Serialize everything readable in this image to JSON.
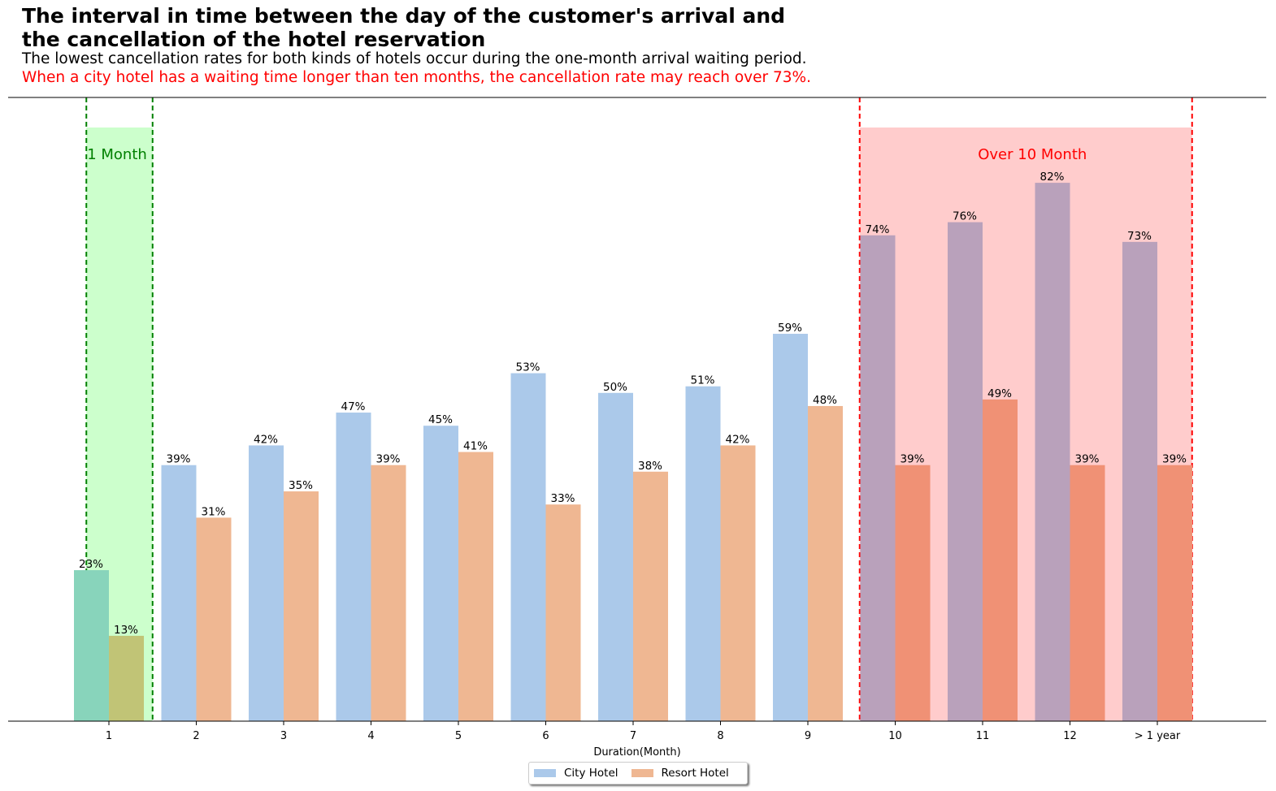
{
  "header": {
    "title_line1": "The interval in time between the day of the customer's arrival and",
    "title_line2": "the cancellation of the hotel reservation",
    "subtitle": "The lowest cancellation rates for both kinds of hotels occur during the one-month arrival waiting period.",
    "highlight": "When a city hotel has a waiting time longer than ten months, the cancellation rate may reach over 73%."
  },
  "chart_data": {
    "type": "bar",
    "title": "The interval in time between the day of the customer's arrival and the cancellation of the hotel reservation",
    "xlabel": "Duration(Month)",
    "ylabel": "",
    "categories": [
      "1",
      "2",
      "3",
      "4",
      "5",
      "6",
      "7",
      "8",
      "9",
      "10",
      "11",
      "12",
      "> 1 year"
    ],
    "series": [
      {
        "name": "City Hotel",
        "values": [
          23,
          39,
          42,
          47,
          45,
          53,
          50,
          51,
          59,
          74,
          76,
          82,
          73
        ]
      },
      {
        "name": "Resort Hotel",
        "values": [
          13,
          31,
          35,
          39,
          41,
          33,
          38,
          42,
          48,
          39,
          49,
          39,
          39
        ]
      }
    ],
    "value_unit": "%",
    "ylim": [
      0,
      95
    ],
    "grid": false,
    "legend_position": "bottom-center",
    "annotations": [
      {
        "label": "1 Month",
        "category_range": [
          "1",
          "1"
        ],
        "color": "#008000"
      },
      {
        "label": "Over 10 Month",
        "category_range": [
          "10",
          "> 1 year"
        ],
        "color": "#ff0000"
      }
    ],
    "colors": {
      "city": "#abc9ea",
      "resort": "#efb792",
      "city_one_month": "#88d4bb",
      "resort_one_month": "#c1c476",
      "city_over_ten": "#b9a1bb",
      "resort_over_ten": "#f09175"
    }
  }
}
